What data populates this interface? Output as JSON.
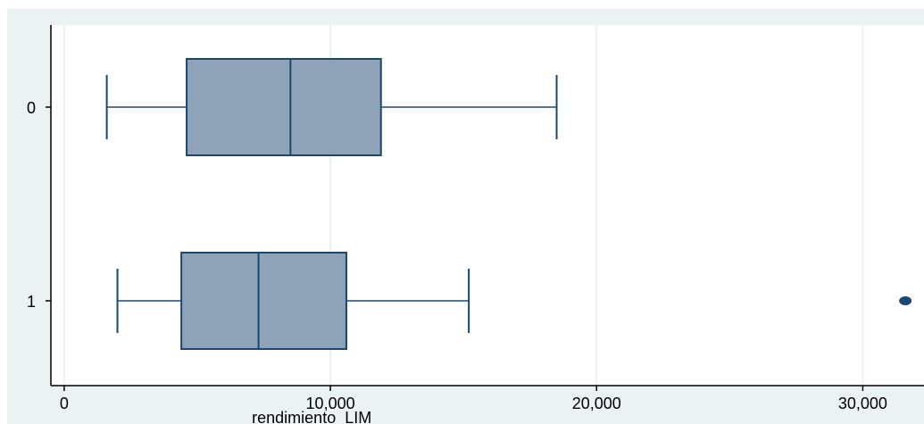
{
  "chart_data": {
    "type": "boxplot",
    "orientation": "horizontal",
    "title": "",
    "xlabel": "rendimiento_LIM",
    "ylabel": "",
    "xlim": [
      -500,
      32300
    ],
    "x_ticks": [
      0,
      10000,
      20000,
      30000
    ],
    "x_tick_labels": [
      "0",
      "10,000",
      "20,000",
      "30,000"
    ],
    "grid": true,
    "categories": [
      "0",
      "1"
    ],
    "boxes": [
      {
        "category": "0",
        "whisker_low": 1600,
        "q1": 4600,
        "median": 8500,
        "q3": 11900,
        "whisker_high": 18500,
        "outliers": []
      },
      {
        "category": "1",
        "whisker_low": 2000,
        "q1": 4400,
        "median": 7300,
        "q3": 10600,
        "whisker_high": 15200,
        "outliers": [
          31600
        ]
      }
    ],
    "colors": {
      "plot_background": "#eaf2f3",
      "plot_region": "#ffffff",
      "grid": "#eaf2f3",
      "box_fill": "#8ea2b8",
      "box_stroke": "#1a476f",
      "outlier": "#1a476f",
      "axis": "#000000",
      "text": "#000000"
    }
  }
}
